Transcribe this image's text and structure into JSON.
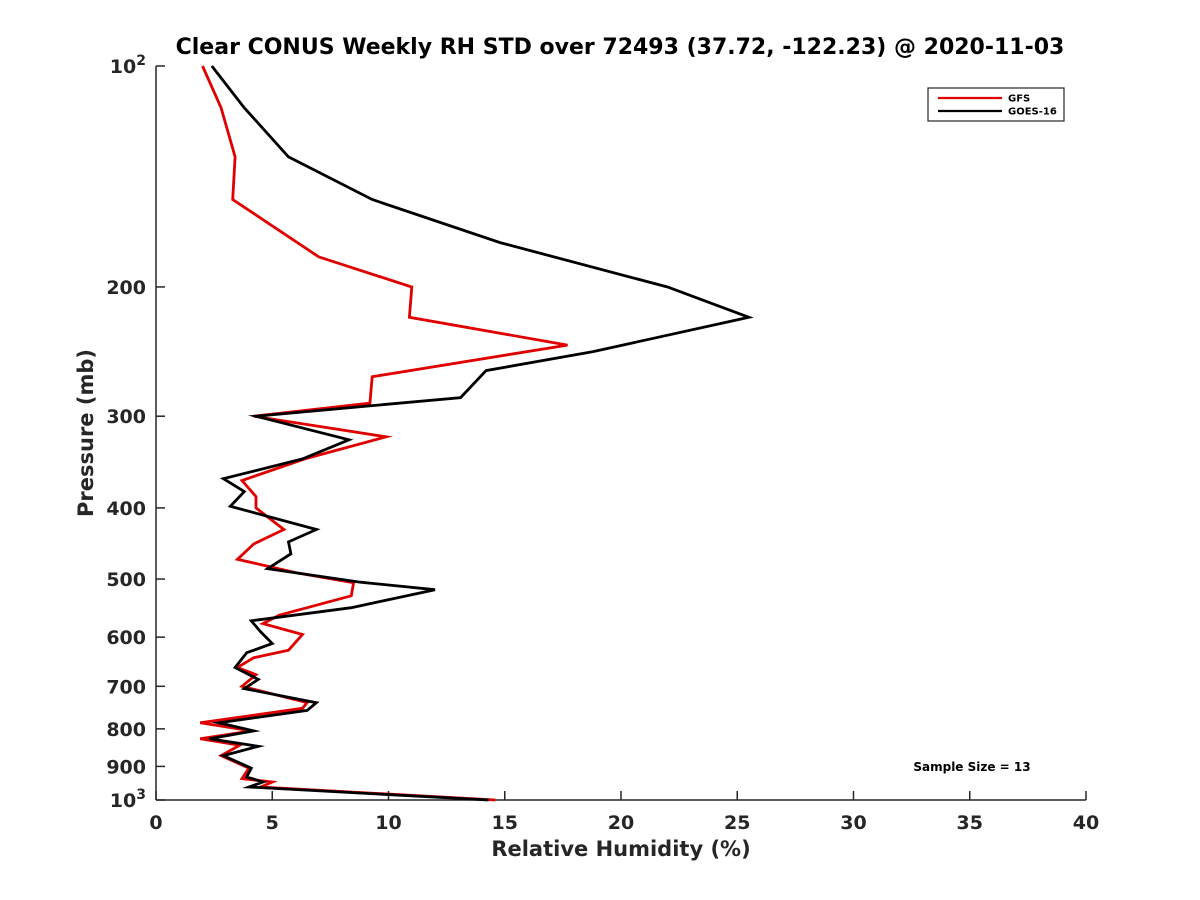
{
  "chart_data": {
    "type": "line",
    "title": "Clear CONUS Weekly RH STD over 72493 (37.72, -122.23) @ 2020-11-03",
    "xlabel": "Relative Humidity (%)",
    "ylabel": "Pressure (mb)",
    "xlim": [
      0,
      40
    ],
    "ylim": [
      100,
      1000
    ],
    "y_scale": "log",
    "y_reversed": true,
    "grid": false,
    "legend_position": "top-right",
    "x_ticks": [
      0,
      5,
      10,
      15,
      20,
      25,
      30,
      35,
      40
    ],
    "x_tick_labels": [
      "0",
      "5",
      "10",
      "15",
      "20",
      "25",
      "30",
      "35",
      "40"
    ],
    "y_ticks": [
      100,
      200,
      300,
      400,
      500,
      600,
      700,
      800,
      900,
      1000
    ],
    "y_tick_labels": [
      {
        "base": "10",
        "exp": "2"
      },
      {
        "base": "200",
        "exp": ""
      },
      {
        "base": "300",
        "exp": ""
      },
      {
        "base": "400",
        "exp": ""
      },
      {
        "base": "500",
        "exp": ""
      },
      {
        "base": "600",
        "exp": ""
      },
      {
        "base": "700",
        "exp": ""
      },
      {
        "base": "800",
        "exp": ""
      },
      {
        "base": "900",
        "exp": ""
      },
      {
        "base": "10",
        "exp": "3"
      }
    ],
    "annotation": "Sample Size = 13",
    "series": [
      {
        "name": "GFS",
        "color": "#e00000",
        "x": [
          2.0,
          2.8,
          3.4,
          3.3,
          7.0,
          11.0,
          10.9,
          17.7,
          9.3,
          9.2,
          4.2,
          9.9,
          6.4,
          3.7,
          4.3,
          4.3,
          5.5,
          4.2,
          3.5,
          6.0,
          8.5,
          8.4,
          5.3,
          4.6,
          6.3,
          5.7,
          4.2,
          3.5,
          4.3,
          3.7,
          6.5,
          6.3,
          1.9,
          4.1,
          1.9,
          3.6,
          2.8,
          4.0,
          3.7,
          5.0,
          4.5,
          14.6
        ],
        "y": [
          100,
          114,
          133,
          152,
          182,
          200,
          220,
          240,
          265,
          288,
          300,
          320,
          343,
          367,
          386,
          400,
          428,
          448,
          470,
          490,
          506,
          527,
          560,
          575,
          595,
          625,
          640,
          660,
          675,
          700,
          737,
          750,
          785,
          805,
          825,
          842,
          870,
          905,
          935,
          945,
          960,
          1000
        ]
      },
      {
        "name": "GOES-16",
        "color": "#000000",
        "x": [
          2.4,
          3.8,
          5.7,
          9.3,
          14.8,
          22.0,
          25.5,
          18.8,
          14.2,
          13.1,
          4.3,
          8.3,
          6.3,
          2.9,
          3.8,
          3.2,
          6.9,
          5.7,
          5.8,
          4.8,
          8.8,
          12.0,
          8.4,
          4.1,
          4.5,
          5.0,
          3.9,
          3.4,
          4.4,
          3.8,
          6.9,
          6.5,
          2.7,
          4.2,
          2.3,
          4.4,
          2.9,
          4.1,
          3.9,
          4.6,
          4.0,
          14.3
        ],
        "y": [
          100,
          114,
          133,
          152,
          174,
          200,
          220,
          245,
          260,
          283,
          300,
          323,
          343,
          365,
          380,
          398,
          428,
          445,
          462,
          484,
          505,
          517,
          547,
          570,
          590,
          612,
          630,
          660,
          685,
          705,
          737,
          755,
          785,
          805,
          825,
          845,
          870,
          905,
          930,
          945,
          960,
          1000
        ]
      }
    ]
  }
}
